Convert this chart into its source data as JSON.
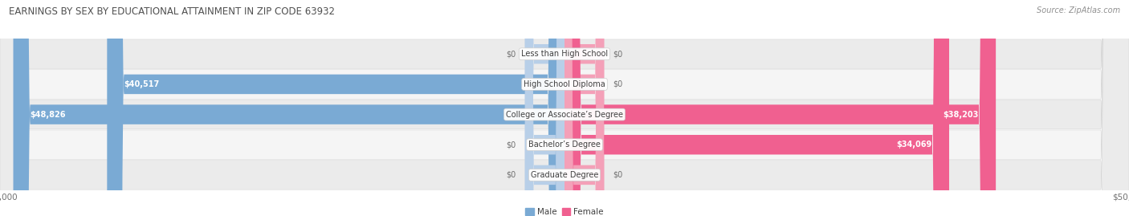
{
  "title": "EARNINGS BY SEX BY EDUCATIONAL ATTAINMENT IN ZIP CODE 63932",
  "source": "Source: ZipAtlas.com",
  "categories": [
    "Less than High School",
    "High School Diploma",
    "College or Associate’s Degree",
    "Bachelor’s Degree",
    "Graduate Degree"
  ],
  "male_values": [
    0,
    40517,
    48826,
    0,
    0
  ],
  "female_values": [
    0,
    0,
    38203,
    34069,
    0
  ],
  "male_color": "#7aaad4",
  "male_stub_color": "#b8cfe8",
  "female_color": "#f06090",
  "female_stub_color": "#f4a0b8",
  "row_bg_color": "#ebebeb",
  "row_bg_alt_color": "#f5f5f5",
  "max_value": 50000,
  "stub_value": 3500,
  "title_fontsize": 8.5,
  "source_fontsize": 7,
  "label_fontsize": 7,
  "tick_fontsize": 7.5,
  "cat_fontsize": 7,
  "background_color": "#ffffff",
  "title_color": "#505050",
  "source_color": "#909090",
  "val_label_color_inside": "#ffffff",
  "val_label_color_outside": "#707070"
}
